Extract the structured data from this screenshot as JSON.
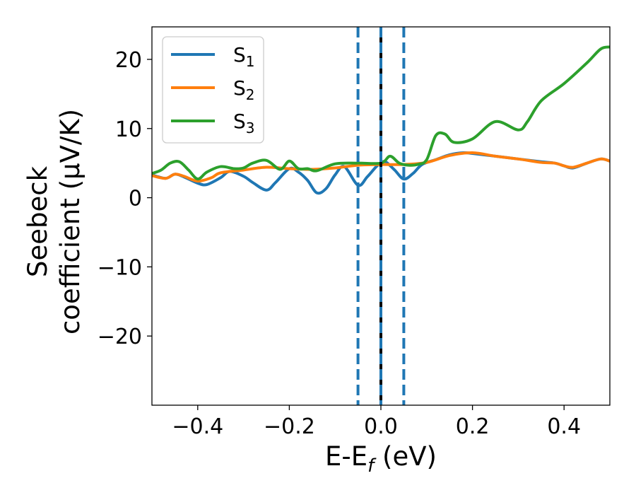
{
  "chart_data": {
    "type": "line",
    "xlabel": "E-E",
    "xlabel_sub": "f",
    "xlabel_unit": " (eV)",
    "ylabel_line1": "Seebeck",
    "ylabel_line2": "coefficient  (μV/K)",
    "xlim": [
      -0.5,
      0.5
    ],
    "ylim": [
      -30,
      24.7
    ],
    "xticks": [
      -0.4,
      -0.2,
      0.0,
      0.2,
      0.4
    ],
    "xtick_labels": [
      "−0.4",
      "−0.2",
      "0.0",
      "0.2",
      "0.4"
    ],
    "yticks": [
      -20,
      -10,
      0,
      10,
      20
    ],
    "ytick_labels": [
      "−20",
      "−10",
      "0",
      "10",
      "20"
    ],
    "legend_position": "top-left",
    "series": [
      {
        "name": "S",
        "sub": "1",
        "color": "#1f77b4",
        "x": [
          -0.5,
          -0.47,
          -0.45,
          -0.43,
          -0.4,
          -0.38,
          -0.35,
          -0.33,
          -0.3,
          -0.28,
          -0.25,
          -0.23,
          -0.2,
          -0.18,
          -0.16,
          -0.14,
          -0.12,
          -0.1,
          -0.08,
          -0.05,
          -0.03,
          -0.01,
          0.0,
          0.01,
          0.03,
          0.05,
          0.07,
          0.09,
          0.12,
          0.15,
          0.18,
          0.2,
          0.25,
          0.3,
          0.35,
          0.38,
          0.4,
          0.42,
          0.45,
          0.48,
          0.5
        ],
        "y": [
          3.3,
          2.8,
          3.4,
          3.0,
          2.1,
          1.9,
          2.9,
          3.8,
          3.1,
          2.2,
          1.1,
          2.2,
          4.2,
          3.7,
          2.5,
          0.7,
          1.3,
          3.3,
          4.5,
          1.8,
          3.0,
          4.5,
          5.0,
          5.2,
          4.0,
          2.7,
          3.5,
          4.8,
          5.5,
          6.2,
          6.5,
          6.4,
          6.0,
          5.6,
          5.2,
          5.0,
          4.6,
          4.3,
          5.0,
          5.6,
          5.3
        ]
      },
      {
        "name": "S",
        "sub": "2",
        "color": "#ff7f0e",
        "x": [
          -0.5,
          -0.47,
          -0.45,
          -0.43,
          -0.4,
          -0.37,
          -0.35,
          -0.3,
          -0.25,
          -0.2,
          -0.15,
          -0.1,
          -0.05,
          0.0,
          0.05,
          0.1,
          0.15,
          0.2,
          0.25,
          0.3,
          0.35,
          0.38,
          0.4,
          0.42,
          0.45,
          0.48,
          0.5
        ],
        "y": [
          3.2,
          2.8,
          3.4,
          3.1,
          2.4,
          2.9,
          3.6,
          4.0,
          4.4,
          4.2,
          4.1,
          4.3,
          4.7,
          4.8,
          4.8,
          5.1,
          6.1,
          6.5,
          6.0,
          5.6,
          5.1,
          5.0,
          4.6,
          4.4,
          5.0,
          5.6,
          5.3
        ]
      },
      {
        "name": "S",
        "sub": "3",
        "color": "#2ca02c",
        "x": [
          -0.5,
          -0.48,
          -0.46,
          -0.44,
          -0.42,
          -0.4,
          -0.38,
          -0.35,
          -0.32,
          -0.3,
          -0.28,
          -0.25,
          -0.22,
          -0.2,
          -0.18,
          -0.16,
          -0.14,
          -0.1,
          -0.05,
          0.0,
          0.02,
          0.04,
          0.06,
          0.08,
          0.1,
          0.12,
          0.14,
          0.16,
          0.2,
          0.25,
          0.3,
          0.32,
          0.35,
          0.4,
          0.45,
          0.48,
          0.5
        ],
        "y": [
          3.5,
          4.0,
          5.0,
          5.2,
          4.0,
          2.7,
          3.7,
          4.5,
          4.2,
          4.3,
          5.0,
          5.4,
          4.1,
          5.3,
          4.2,
          4.2,
          3.9,
          4.9,
          5.0,
          5.0,
          6.0,
          5.0,
          4.7,
          4.8,
          5.5,
          9.0,
          9.2,
          8.0,
          8.5,
          11.0,
          9.8,
          11.0,
          14.0,
          16.5,
          19.5,
          21.5,
          21.8
        ]
      }
    ],
    "vlines": [
      {
        "x": -0.05,
        "color": "#1f77b4",
        "style": "dashed"
      },
      {
        "x": 0.0,
        "color": "#000000",
        "style": "solid"
      },
      {
        "x": 0.0,
        "color": "#1f77b4",
        "style": "dashed"
      },
      {
        "x": 0.05,
        "color": "#1f77b4",
        "style": "dashed"
      }
    ]
  }
}
